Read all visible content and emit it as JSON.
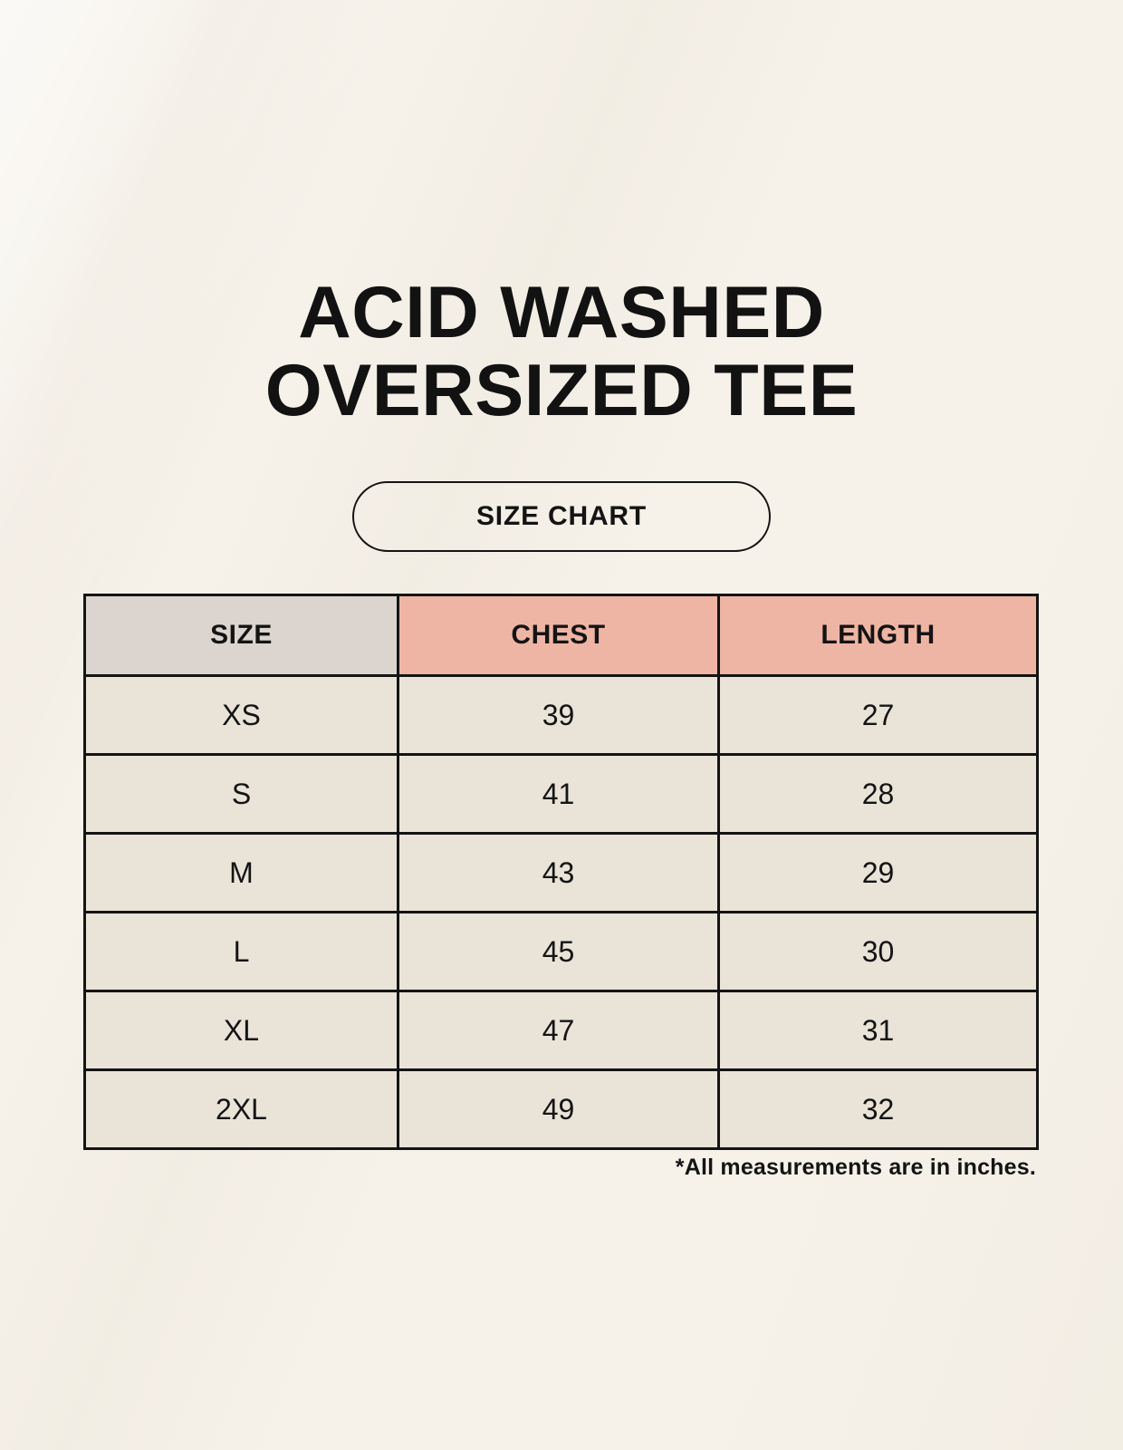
{
  "page": {
    "title_line1": "ACID WASHED",
    "title_line2": "OVERSIZED TEE",
    "button_label": "SIZE CHART",
    "footnote": "*All measurements are in inches."
  },
  "chart_data": {
    "type": "table",
    "title": "ACID WASHED OVERSIZED TEE",
    "columns": [
      "SIZE",
      "CHEST",
      "LENGTH"
    ],
    "rows": [
      [
        "XS",
        "39",
        "27"
      ],
      [
        "S",
        "41",
        "28"
      ],
      [
        "M",
        "43",
        "29"
      ],
      [
        "L",
        "45",
        "30"
      ],
      [
        "XL",
        "47",
        "31"
      ],
      [
        "2XL",
        "49",
        "32"
      ]
    ],
    "footnote": "*All measurements are in inches.",
    "units": "inches"
  },
  "colors": {
    "background": "#f6f2ea",
    "header_accent": "#efb5a4",
    "size_column_bg": "#dbd4cf",
    "cell_bg": "#e9e3d8",
    "border": "#141414",
    "text": "#141414"
  }
}
